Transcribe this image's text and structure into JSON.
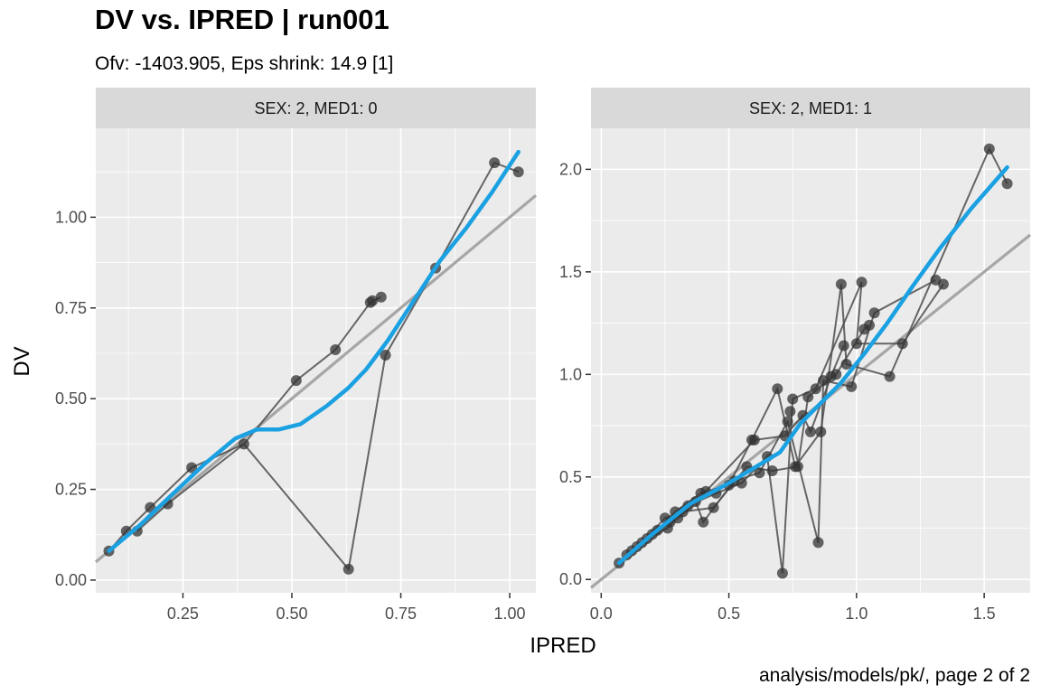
{
  "title": "DV vs. IPRED | run001",
  "subtitle": "Ofv: -1403.905, Eps shrink: 14.9 [1]",
  "caption": "analysis/models/pk/, page 2 of 2",
  "colors": {
    "panel_bg": "#ebebeb",
    "strip_bg": "#d9d9d9",
    "grid": "#ffffff",
    "points": "#333333",
    "path": "#4d4d4d",
    "identity_line": "#a6a6a6",
    "smooth": "#1ba1e2"
  },
  "chart_data": [
    {
      "type": "scatter",
      "strip": "SEX: 2, MED1: 0",
      "xlabel": "IPRED",
      "ylabel": "DV",
      "xlim": [
        0.05,
        1.06
      ],
      "ylim": [
        -0.035,
        1.245
      ],
      "xticks": [
        0.25,
        0.5,
        0.75,
        1.0
      ],
      "xtick_labels": [
        "0.25",
        "0.50",
        "0.75",
        "1.00"
      ],
      "yticks": [
        0.0,
        0.25,
        0.5,
        0.75,
        1.0
      ],
      "ytick_labels": [
        "0.00",
        "0.25",
        "0.50",
        "0.75",
        "1.00"
      ],
      "grid": true,
      "identity_line": true,
      "points": [
        [
          0.08,
          0.08
        ],
        [
          0.12,
          0.135
        ],
        [
          0.145,
          0.135
        ],
        [
          0.175,
          0.2
        ],
        [
          0.215,
          0.21
        ],
        [
          0.27,
          0.31
        ],
        [
          0.39,
          0.375
        ],
        [
          0.51,
          0.55
        ],
        [
          0.6,
          0.635
        ],
        [
          0.68,
          0.765
        ],
        [
          0.685,
          0.77
        ],
        [
          0.705,
          0.78
        ],
        [
          0.715,
          0.62
        ],
        [
          0.63,
          0.03
        ],
        [
          0.83,
          0.86
        ],
        [
          0.965,
          1.15
        ],
        [
          1.02,
          1.125
        ]
      ],
      "paths": [
        [
          [
            0.08,
            0.08
          ],
          [
            0.12,
            0.135
          ],
          [
            0.175,
            0.2
          ],
          [
            0.27,
            0.31
          ],
          [
            0.39,
            0.375
          ],
          [
            0.63,
            0.03
          ],
          [
            0.715,
            0.62
          ],
          [
            0.83,
            0.86
          ],
          [
            0.965,
            1.15
          ],
          [
            1.02,
            1.125
          ]
        ],
        [
          [
            0.145,
            0.135
          ],
          [
            0.215,
            0.21
          ],
          [
            0.39,
            0.375
          ],
          [
            0.51,
            0.55
          ],
          [
            0.6,
            0.635
          ],
          [
            0.68,
            0.765
          ],
          [
            0.705,
            0.78
          ]
        ]
      ],
      "smooth": [
        [
          0.08,
          0.08
        ],
        [
          0.15,
          0.15
        ],
        [
          0.22,
          0.23
        ],
        [
          0.3,
          0.32
        ],
        [
          0.37,
          0.39
        ],
        [
          0.42,
          0.415
        ],
        [
          0.47,
          0.415
        ],
        [
          0.52,
          0.43
        ],
        [
          0.58,
          0.48
        ],
        [
          0.63,
          0.53
        ],
        [
          0.67,
          0.58
        ],
        [
          0.72,
          0.66
        ],
        [
          0.78,
          0.77
        ],
        [
          0.84,
          0.88
        ],
        [
          0.9,
          0.97
        ],
        [
          0.96,
          1.07
        ],
        [
          1.02,
          1.18
        ]
      ]
    },
    {
      "type": "scatter",
      "strip": "SEX: 2, MED1: 1",
      "xlabel": "IPRED",
      "ylabel": "DV",
      "xlim": [
        -0.04,
        1.68
      ],
      "ylim": [
        -0.065,
        2.2
      ],
      "xticks": [
        0.0,
        0.5,
        1.0,
        1.5
      ],
      "xtick_labels": [
        "0.0",
        "0.5",
        "1.0",
        "1.5"
      ],
      "yticks": [
        0.0,
        0.5,
        1.0,
        1.5,
        2.0
      ],
      "ytick_labels": [
        "0.0",
        "0.5",
        "1.0",
        "1.5",
        "2.0"
      ],
      "grid": true,
      "identity_line": true,
      "points": [
        [
          0.07,
          0.08
        ],
        [
          0.1,
          0.12
        ],
        [
          0.12,
          0.14
        ],
        [
          0.14,
          0.16
        ],
        [
          0.16,
          0.18
        ],
        [
          0.18,
          0.2
        ],
        [
          0.2,
          0.22
        ],
        [
          0.22,
          0.24
        ],
        [
          0.25,
          0.3
        ],
        [
          0.26,
          0.25
        ],
        [
          0.27,
          0.28
        ],
        [
          0.29,
          0.33
        ],
        [
          0.3,
          0.3
        ],
        [
          0.32,
          0.33
        ],
        [
          0.34,
          0.36
        ],
        [
          0.37,
          0.38
        ],
        [
          0.39,
          0.42
        ],
        [
          0.4,
          0.28
        ],
        [
          0.41,
          0.43
        ],
        [
          0.44,
          0.35
        ],
        [
          0.45,
          0.42
        ],
        [
          0.5,
          0.46
        ],
        [
          0.52,
          0.48
        ],
        [
          0.55,
          0.47
        ],
        [
          0.57,
          0.55
        ],
        [
          0.59,
          0.68
        ],
        [
          0.6,
          0.68
        ],
        [
          0.62,
          0.52
        ],
        [
          0.65,
          0.6
        ],
        [
          0.67,
          0.53
        ],
        [
          0.69,
          0.93
        ],
        [
          0.71,
          0.03
        ],
        [
          0.72,
          0.7
        ],
        [
          0.73,
          0.77
        ],
        [
          0.74,
          0.82
        ],
        [
          0.75,
          0.88
        ],
        [
          0.76,
          0.55
        ],
        [
          0.77,
          0.55
        ],
        [
          0.79,
          0.8
        ],
        [
          0.81,
          0.89
        ],
        [
          0.82,
          0.72
        ],
        [
          0.84,
          0.93
        ],
        [
          0.85,
          0.18
        ],
        [
          0.86,
          0.72
        ],
        [
          0.87,
          0.97
        ],
        [
          0.9,
          0.99
        ],
        [
          0.92,
          1.0
        ],
        [
          0.94,
          1.44
        ],
        [
          0.95,
          1.14
        ],
        [
          0.96,
          1.05
        ],
        [
          0.98,
          0.94
        ],
        [
          1.0,
          1.15
        ],
        [
          1.02,
          1.45
        ],
        [
          1.03,
          1.22
        ],
        [
          1.05,
          1.24
        ],
        [
          1.07,
          1.3
        ],
        [
          1.13,
          0.99
        ],
        [
          1.18,
          1.15
        ],
        [
          1.31,
          1.46
        ],
        [
          1.34,
          1.44
        ],
        [
          1.52,
          2.1
        ],
        [
          1.59,
          1.93
        ]
      ],
      "paths": [
        [
          [
            0.07,
            0.08
          ],
          [
            0.14,
            0.16
          ],
          [
            0.22,
            0.24
          ],
          [
            0.29,
            0.33
          ],
          [
            0.39,
            0.42
          ],
          [
            0.5,
            0.46
          ],
          [
            0.59,
            0.68
          ],
          [
            0.69,
            0.93
          ],
          [
            0.76,
            0.55
          ],
          [
            0.86,
            0.72
          ],
          [
            0.94,
            1.44
          ],
          [
            0.96,
            1.05
          ],
          [
            1.13,
            0.99
          ],
          [
            1.52,
            2.1
          ],
          [
            1.59,
            1.93
          ]
        ],
        [
          [
            0.1,
            0.12
          ],
          [
            0.18,
            0.2
          ],
          [
            0.26,
            0.25
          ],
          [
            0.34,
            0.36
          ],
          [
            0.45,
            0.42
          ],
          [
            0.55,
            0.47
          ],
          [
            0.65,
            0.6
          ],
          [
            0.71,
            0.03
          ],
          [
            0.75,
            0.88
          ],
          [
            0.84,
            0.93
          ],
          [
            1.02,
            1.45
          ],
          [
            1.0,
            1.15
          ],
          [
            1.18,
            1.15
          ],
          [
            1.34,
            1.44
          ]
        ],
        [
          [
            0.12,
            0.14
          ],
          [
            0.2,
            0.22
          ],
          [
            0.27,
            0.28
          ],
          [
            0.37,
            0.38
          ],
          [
            0.4,
            0.28
          ],
          [
            0.52,
            0.48
          ],
          [
            0.62,
            0.52
          ],
          [
            0.73,
            0.77
          ],
          [
            0.85,
            0.18
          ],
          [
            0.87,
            0.97
          ],
          [
            0.98,
            0.94
          ],
          [
            1.07,
            1.3
          ],
          [
            1.31,
            1.46
          ]
        ],
        [
          [
            0.16,
            0.18
          ],
          [
            0.25,
            0.3
          ],
          [
            0.32,
            0.33
          ],
          [
            0.44,
            0.35
          ],
          [
            0.57,
            0.55
          ],
          [
            0.67,
            0.53
          ],
          [
            0.77,
            0.55
          ],
          [
            0.81,
            0.89
          ],
          [
            0.92,
            1.0
          ],
          [
            1.03,
            1.22
          ],
          [
            1.05,
            1.24
          ]
        ],
        [
          [
            0.3,
            0.3
          ],
          [
            0.41,
            0.43
          ],
          [
            0.6,
            0.68
          ],
          [
            0.72,
            0.7
          ],
          [
            0.79,
            0.8
          ],
          [
            0.82,
            0.72
          ],
          [
            0.9,
            0.99
          ],
          [
            0.95,
            1.14
          ]
        ]
      ],
      "smooth": [
        [
          0.07,
          0.08
        ],
        [
          0.2,
          0.22
        ],
        [
          0.35,
          0.37
        ],
        [
          0.5,
          0.47
        ],
        [
          0.62,
          0.56
        ],
        [
          0.7,
          0.62
        ],
        [
          0.78,
          0.76
        ],
        [
          0.86,
          0.86
        ],
        [
          0.94,
          0.96
        ],
        [
          1.03,
          1.1
        ],
        [
          1.12,
          1.25
        ],
        [
          1.22,
          1.43
        ],
        [
          1.33,
          1.62
        ],
        [
          1.45,
          1.81
        ],
        [
          1.59,
          2.01
        ]
      ]
    }
  ]
}
